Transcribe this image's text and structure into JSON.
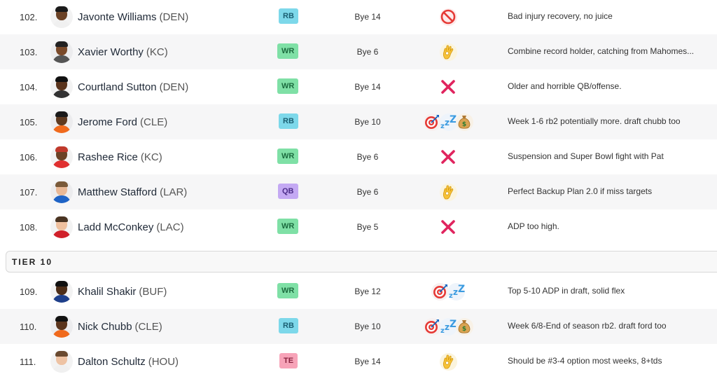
{
  "colors": {
    "rb_bg": "#7dd8ea",
    "rb_fg": "#1b5f72",
    "wr_bg": "#7fe0a6",
    "wr_fg": "#1c6b3f",
    "qb_bg": "#c4a9f3",
    "qb_fg": "#4d2e8a",
    "te_bg": "#f7a3b8",
    "te_fg": "#8a2440"
  },
  "players": [
    {
      "rank": "102.",
      "name": "Javonte Williams",
      "team": "(DEN)",
      "pos": "RB",
      "bye": "Bye 14",
      "icons": [
        "no-icon"
      ],
      "note": "Bad injury recovery, no juice"
    },
    {
      "rank": "103.",
      "name": "Xavier Worthy",
      "team": "(KC)",
      "pos": "WR",
      "bye": "Bye 6",
      "icons": [
        "ok-hand-icon"
      ],
      "note": "Combine record holder, catching from Mahomes..."
    },
    {
      "rank": "104.",
      "name": "Courtland Sutton",
      "team": "(DEN)",
      "pos": "WR",
      "bye": "Bye 14",
      "icons": [
        "x-mark-icon"
      ],
      "note": "Older and horrible QB/offense."
    },
    {
      "rank": "105.",
      "name": "Jerome Ford",
      "team": "(CLE)",
      "pos": "RB",
      "bye": "Bye 10",
      "icons": [
        "target-icon",
        "sleeper-icon",
        "money-bag-icon"
      ],
      "note": "Week 1-6 rb2 potentially more. draft chubb too"
    },
    {
      "rank": "106.",
      "name": "Rashee Rice",
      "team": "(KC)",
      "pos": "WR",
      "bye": "Bye 6",
      "icons": [
        "x-mark-icon"
      ],
      "note": "Suspension and Super Bowl fight with Pat"
    },
    {
      "rank": "107.",
      "name": "Matthew Stafford",
      "team": "(LAR)",
      "pos": "QB",
      "bye": "Bye 6",
      "icons": [
        "ok-hand-icon"
      ],
      "note": "Perfect Backup Plan 2.0 if miss targets"
    },
    {
      "rank": "108.",
      "name": "Ladd McConkey",
      "team": "(LAC)",
      "pos": "WR",
      "bye": "Bye 5",
      "icons": [
        "x-mark-icon"
      ],
      "note": "ADP too high."
    }
  ],
  "tier_label": "TIER 10",
  "players_tier10": [
    {
      "rank": "109.",
      "name": "Khalil Shakir",
      "team": "(BUF)",
      "pos": "WR",
      "bye": "Bye 12",
      "icons": [
        "target-icon",
        "sleeper-icon"
      ],
      "note": "Top 5-10 ADP in draft, solid flex"
    },
    {
      "rank": "110.",
      "name": "Nick Chubb",
      "team": "(CLE)",
      "pos": "RB",
      "bye": "Bye 10",
      "icons": [
        "target-icon",
        "sleeper-icon",
        "money-bag-icon"
      ],
      "note": "Week 6/8-End of season rb2. draft ford too"
    },
    {
      "rank": "111.",
      "name": "Dalton Schultz",
      "team": "(HOU)",
      "pos": "TE",
      "bye": "Bye 14",
      "icons": [
        "ok-hand-icon"
      ],
      "note": "Should be #3-4 option most weeks, 8+tds"
    }
  ]
}
